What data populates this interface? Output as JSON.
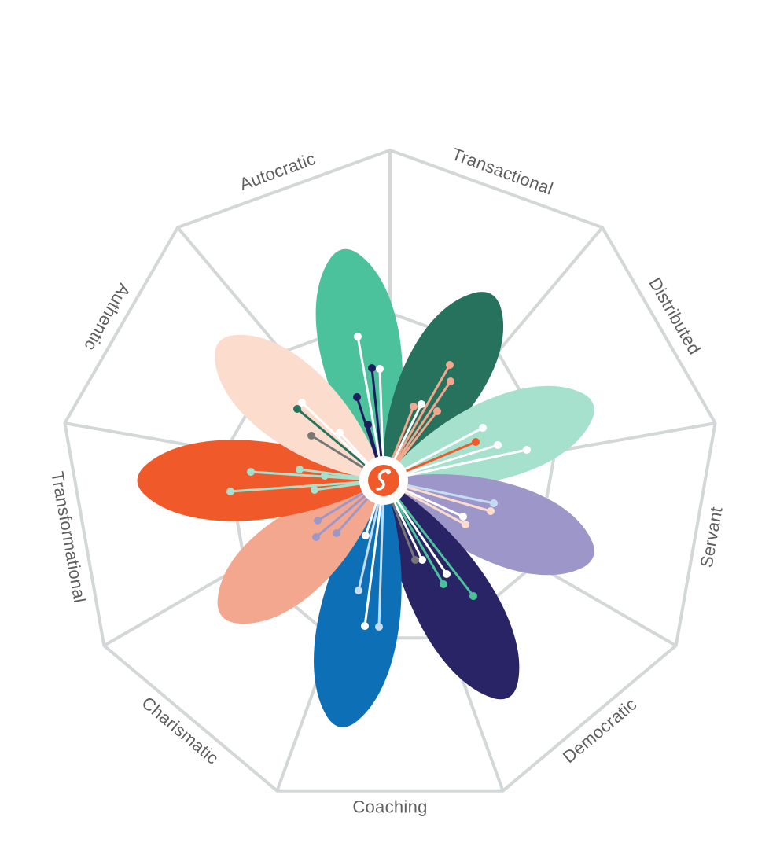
{
  "categories": [
    {
      "id": "autocratic",
      "label": "Autocratic",
      "color": "#4cc29c"
    },
    {
      "id": "transactional",
      "label": "Transactional",
      "color": "#26725c"
    },
    {
      "id": "distributed",
      "label": "Distributed",
      "color": "#a6e1ce"
    },
    {
      "id": "servant",
      "label": "Servant",
      "color": "#9d97c9"
    },
    {
      "id": "democratic",
      "label": "Democratic",
      "color": "#282466"
    },
    {
      "id": "coaching",
      "label": "Coaching",
      "color": "#0d70b6"
    },
    {
      "id": "charismatic",
      "label": "Charismatic",
      "color": "#f4a78f"
    },
    {
      "id": "transformational",
      "label": "Transformational",
      "color": "#f05a2b"
    },
    {
      "id": "authentic",
      "label": "Authentic",
      "color": "#fbdccd"
    }
  ],
  "colors": {
    "grid": "#d4d7d7",
    "center_logo": "#f05a2b",
    "label_text": "#5f5f5f"
  },
  "logo": "phoenix-logo"
}
